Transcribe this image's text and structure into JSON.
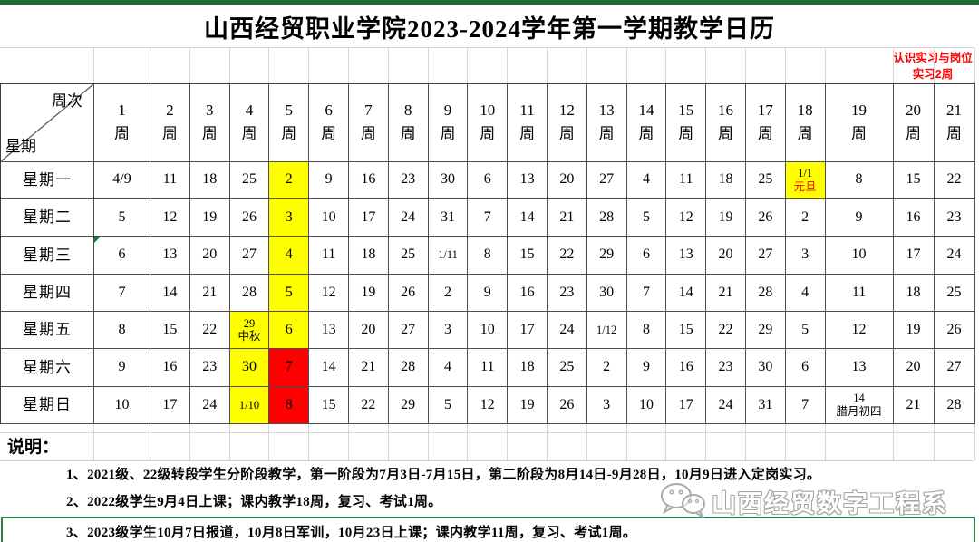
{
  "page": {
    "title": "山西经贸职业学院2023-2024学年第一学期教学日历",
    "practice_note": "认识实习与岗位实习2周"
  },
  "calendar": {
    "corner": {
      "top": "周次",
      "bottom": "星期"
    },
    "week_suffix": "周",
    "week_numbers": [
      "1",
      "2",
      "3",
      "4",
      "5",
      "6",
      "7",
      "8",
      "9",
      "10",
      "11",
      "12",
      "13",
      "14",
      "15",
      "16",
      "17",
      "18",
      "19",
      "20",
      "21"
    ],
    "day_rows": [
      {
        "label": "星期一",
        "cells": [
          "4/9",
          "11",
          "18",
          "25",
          {
            "t": "2",
            "bg": "yellow"
          },
          "9",
          "16",
          "23",
          "30",
          "6",
          "13",
          "20",
          "27",
          "4",
          "11",
          "18",
          "25",
          {
            "t": "1/1",
            "sub": "元旦",
            "bg": "yellow",
            "small": true,
            "subRed": true
          },
          "8",
          "15",
          "22"
        ]
      },
      {
        "label": "星期二",
        "cells": [
          "5",
          "12",
          "19",
          "26",
          {
            "t": "3",
            "bg": "yellow"
          },
          "10",
          "17",
          "24",
          "31",
          "7",
          "14",
          "21",
          "28",
          "5",
          "12",
          "19",
          "26",
          "2",
          "9",
          "16",
          "23"
        ]
      },
      {
        "label": "星期三",
        "cells": [
          {
            "t": "6",
            "marker": true
          },
          "13",
          "20",
          "27",
          {
            "t": "4",
            "bg": "yellow"
          },
          "11",
          "18",
          "25",
          {
            "t": "1/11",
            "small": true
          },
          "8",
          "15",
          "22",
          "29",
          "6",
          "13",
          "20",
          "27",
          "3",
          "10",
          "17",
          "24"
        ]
      },
      {
        "label": "星期四",
        "cells": [
          "7",
          "14",
          "21",
          "28",
          {
            "t": "5",
            "bg": "yellow"
          },
          "12",
          "19",
          "26",
          "2",
          "9",
          "16",
          "23",
          "30",
          "7",
          "14",
          "21",
          "28",
          "4",
          "11",
          "18",
          "25"
        ]
      },
      {
        "label": "星期五",
        "cells": [
          "8",
          "15",
          "22",
          {
            "t": "29",
            "sub": "中秋",
            "bg": "yellow",
            "small": true
          },
          {
            "t": "6",
            "bg": "yellow"
          },
          "13",
          "20",
          "27",
          "3",
          "10",
          "17",
          "24",
          {
            "t": "1/12",
            "small": true
          },
          "8",
          "15",
          "22",
          "29",
          "5",
          "12",
          "19",
          "26"
        ]
      },
      {
        "label": "星期六",
        "cells": [
          "9",
          "16",
          "23",
          {
            "t": "30",
            "bg": "yellow"
          },
          {
            "t": "7",
            "bg": "red"
          },
          "14",
          "21",
          "28",
          "4",
          "11",
          "18",
          "25",
          "2",
          "9",
          "16",
          "23",
          "30",
          "6",
          "13",
          "20",
          "27"
        ]
      },
      {
        "label": "星期日",
        "cells": [
          "10",
          "17",
          "24",
          {
            "t": "1/10",
            "bg": "yellow",
            "small": true
          },
          {
            "t": "8",
            "bg": "red"
          },
          "15",
          "22",
          "29",
          "5",
          "12",
          "19",
          "26",
          "3",
          "10",
          "17",
          "24",
          "31",
          "7",
          {
            "t": "14",
            "sub": "腊月初四",
            "small": true
          },
          "21",
          "28"
        ]
      }
    ]
  },
  "notes": {
    "heading": "说明：",
    "items": [
      "1、2021级、22级转段学生分阶段教学，第一阶段为7月3日-7月15日，第二阶段为8月14日-9月28日，10月9日进入定岗实习。",
      "2、2022级学生9月4日上课；课内教学18周，复习、考试1周。",
      "3、2023级学生10月7日报道，10月8日军训，10月23日上课；课内教学11周，复习、考试1周。"
    ]
  },
  "watermark": {
    "text": "山西经贸数字工程系"
  },
  "colors": {
    "top_bar": "#1e6b3a",
    "highlight_yellow": "#ffff00",
    "highlight_red": "#ff0000",
    "note_red": "#ff0000",
    "selection_green": "#2e7d4c"
  }
}
